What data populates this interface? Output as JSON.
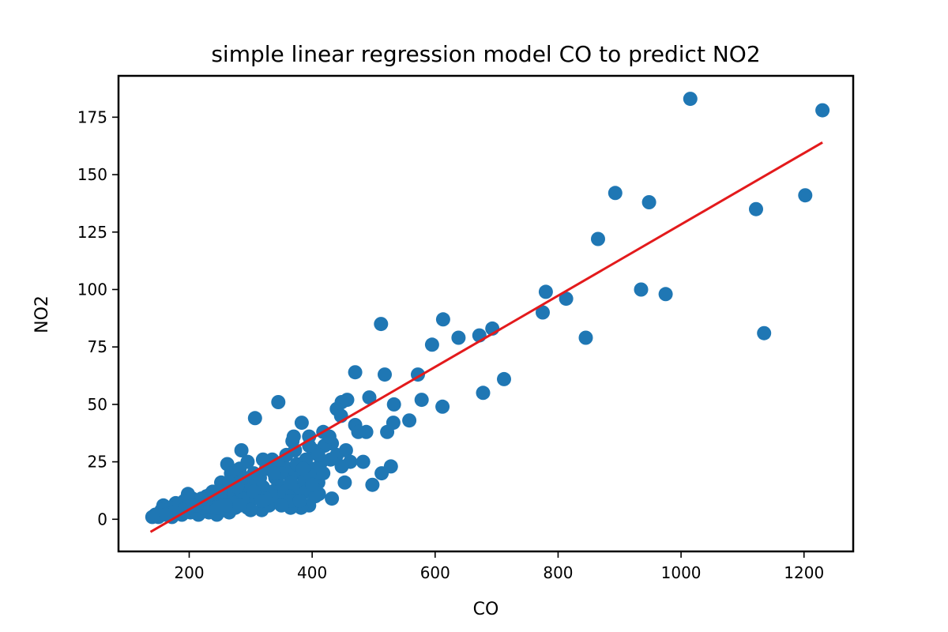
{
  "chart_data": {
    "type": "scatter",
    "title": "simple linear regression model CO to predict NO2",
    "xlabel": "CO",
    "ylabel": "NO2",
    "xlim": [
      85,
      1280
    ],
    "ylim": [
      -14,
      193
    ],
    "xticks": [
      200,
      400,
      600,
      800,
      1000,
      1200
    ],
    "yticks": [
      0,
      25,
      50,
      75,
      100,
      125,
      150,
      175
    ],
    "grid": false,
    "colors": {
      "points": "#1f77b4",
      "line": "#e31a1c"
    },
    "series": [
      {
        "type": "scatter",
        "points": [
          [
            1015,
            183
          ],
          [
            1230,
            178
          ],
          [
            893,
            142
          ],
          [
            948,
            138
          ],
          [
            1202,
            141
          ],
          [
            1122,
            135
          ],
          [
            865,
            122
          ],
          [
            780,
            99
          ],
          [
            813,
            96
          ],
          [
            935,
            100
          ],
          [
            975,
            98
          ],
          [
            775,
            90
          ],
          [
            1135,
            81
          ],
          [
            845,
            79
          ],
          [
            512,
            85
          ],
          [
            613,
            87
          ],
          [
            693,
            83
          ],
          [
            672,
            80
          ],
          [
            638,
            79
          ],
          [
            595,
            76
          ],
          [
            572,
            63
          ],
          [
            518,
            63
          ],
          [
            470,
            64
          ],
          [
            712,
            61
          ],
          [
            678,
            55
          ],
          [
            578,
            52
          ],
          [
            612,
            49
          ],
          [
            558,
            43
          ],
          [
            533,
            50
          ],
          [
            493,
            53
          ],
          [
            457,
            52
          ],
          [
            448,
            51
          ],
          [
            440,
            48
          ],
          [
            447,
            45
          ],
          [
            470,
            41
          ],
          [
            488,
            38
          ],
          [
            475,
            38
          ],
          [
            522,
            38
          ],
          [
            532,
            42
          ],
          [
            345,
            51
          ],
          [
            307,
            44
          ],
          [
            383,
            42
          ],
          [
            418,
            38
          ],
          [
            432,
            33
          ],
          [
            440,
            28
          ],
          [
            455,
            30
          ],
          [
            462,
            25
          ],
          [
            448,
            23
          ],
          [
            483,
            25
          ],
          [
            513,
            20
          ],
          [
            528,
            23
          ],
          [
            498,
            15
          ],
          [
            453,
            16
          ],
          [
            410,
            16
          ],
          [
            432,
            9
          ],
          [
            411,
            11
          ],
          [
            395,
            6
          ],
          [
            382,
            5
          ],
          [
            365,
            5
          ],
          [
            352,
            8
          ],
          [
            318,
            4
          ],
          [
            295,
            5
          ],
          [
            285,
            30
          ],
          [
            262,
            24
          ],
          [
            368,
            34
          ],
          [
            395,
            36
          ],
          [
            402,
            30
          ],
          [
            390,
            26
          ],
          [
            415,
            25
          ],
          [
            405,
            22
          ],
          [
            380,
            20
          ],
          [
            365,
            18
          ],
          [
            345,
            15
          ],
          [
            335,
            12
          ],
          [
            320,
            14
          ],
          [
            310,
            10
          ],
          [
            300,
            8
          ],
          [
            290,
            12
          ],
          [
            280,
            18
          ],
          [
            270,
            10
          ],
          [
            258,
            14
          ],
          [
            248,
            8
          ],
          [
            240,
            6
          ],
          [
            228,
            10
          ],
          [
            218,
            5
          ],
          [
            210,
            8
          ],
          [
            202,
            3
          ],
          [
            195,
            6
          ],
          [
            188,
            2
          ],
          [
            180,
            4
          ],
          [
            172,
            1
          ],
          [
            165,
            3
          ],
          [
            158,
            6
          ],
          [
            150,
            1
          ],
          [
            140,
            1
          ],
          [
            215,
            2
          ],
          [
            232,
            3
          ],
          [
            255,
            4
          ],
          [
            275,
            5
          ],
          [
            265,
            3
          ],
          [
            245,
            2
          ],
          [
            205,
            9
          ],
          [
            198,
            11
          ],
          [
            225,
            7
          ],
          [
            238,
            12
          ],
          [
            252,
            16
          ],
          [
            268,
            20
          ],
          [
            282,
            22
          ],
          [
            295,
            25
          ],
          [
            305,
            20
          ],
          [
            315,
            18
          ],
          [
            325,
            22
          ],
          [
            335,
            26
          ],
          [
            348,
            24
          ],
          [
            358,
            28
          ],
          [
            372,
            30
          ],
          [
            330,
            6
          ],
          [
            342,
            10
          ],
          [
            355,
            12
          ],
          [
            368,
            11
          ],
          [
            378,
            14
          ],
          [
            388,
            17
          ],
          [
            398,
            19
          ],
          [
            420,
            32
          ],
          [
            428,
            36
          ],
          [
            312,
            16
          ],
          [
            298,
            15
          ],
          [
            286,
            9
          ],
          [
            274,
            7
          ],
          [
            262,
            12
          ],
          [
            250,
            10
          ],
          [
            236,
            8
          ],
          [
            222,
            5
          ],
          [
            208,
            4
          ],
          [
            192,
            8
          ],
          [
            185,
            5
          ],
          [
            178,
            7
          ],
          [
            168,
            5
          ],
          [
            160,
            3
          ],
          [
            155,
            4
          ],
          [
            145,
            2
          ],
          [
            340,
            18
          ],
          [
            360,
            22
          ],
          [
            375,
            24
          ],
          [
            390,
            12
          ],
          [
            405,
            10
          ],
          [
            365,
            8
          ],
          [
            350,
            6
          ],
          [
            325,
            9
          ],
          [
            305,
            12
          ],
          [
            290,
            18
          ],
          [
            278,
            14
          ],
          [
            260,
            6
          ],
          [
            245,
            5
          ],
          [
            230,
            9
          ],
          [
            212,
            6
          ],
          [
            200,
            5
          ],
          [
            320,
            26
          ],
          [
            350,
            20
          ],
          [
            380,
            8
          ],
          [
            400,
            15
          ],
          [
            418,
            20
          ],
          [
            430,
            26
          ],
          [
            365,
            16
          ],
          [
            338,
            20
          ],
          [
            318,
            8
          ],
          [
            300,
            4
          ],
          [
            282,
            6
          ],
          [
            265,
            16
          ],
          [
            250,
            12
          ],
          [
            235,
            11
          ],
          [
            220,
            9
          ],
          [
            205,
            6
          ],
          [
            190,
            4
          ],
          [
            175,
            3
          ],
          [
            162,
            2
          ],
          [
            370,
            36
          ],
          [
            385,
            22
          ],
          [
            395,
            32
          ],
          [
            410,
            28
          ]
        ]
      },
      {
        "type": "line",
        "points": [
          [
            137,
            -5.5
          ],
          [
            1230,
            164
          ]
        ]
      }
    ]
  }
}
